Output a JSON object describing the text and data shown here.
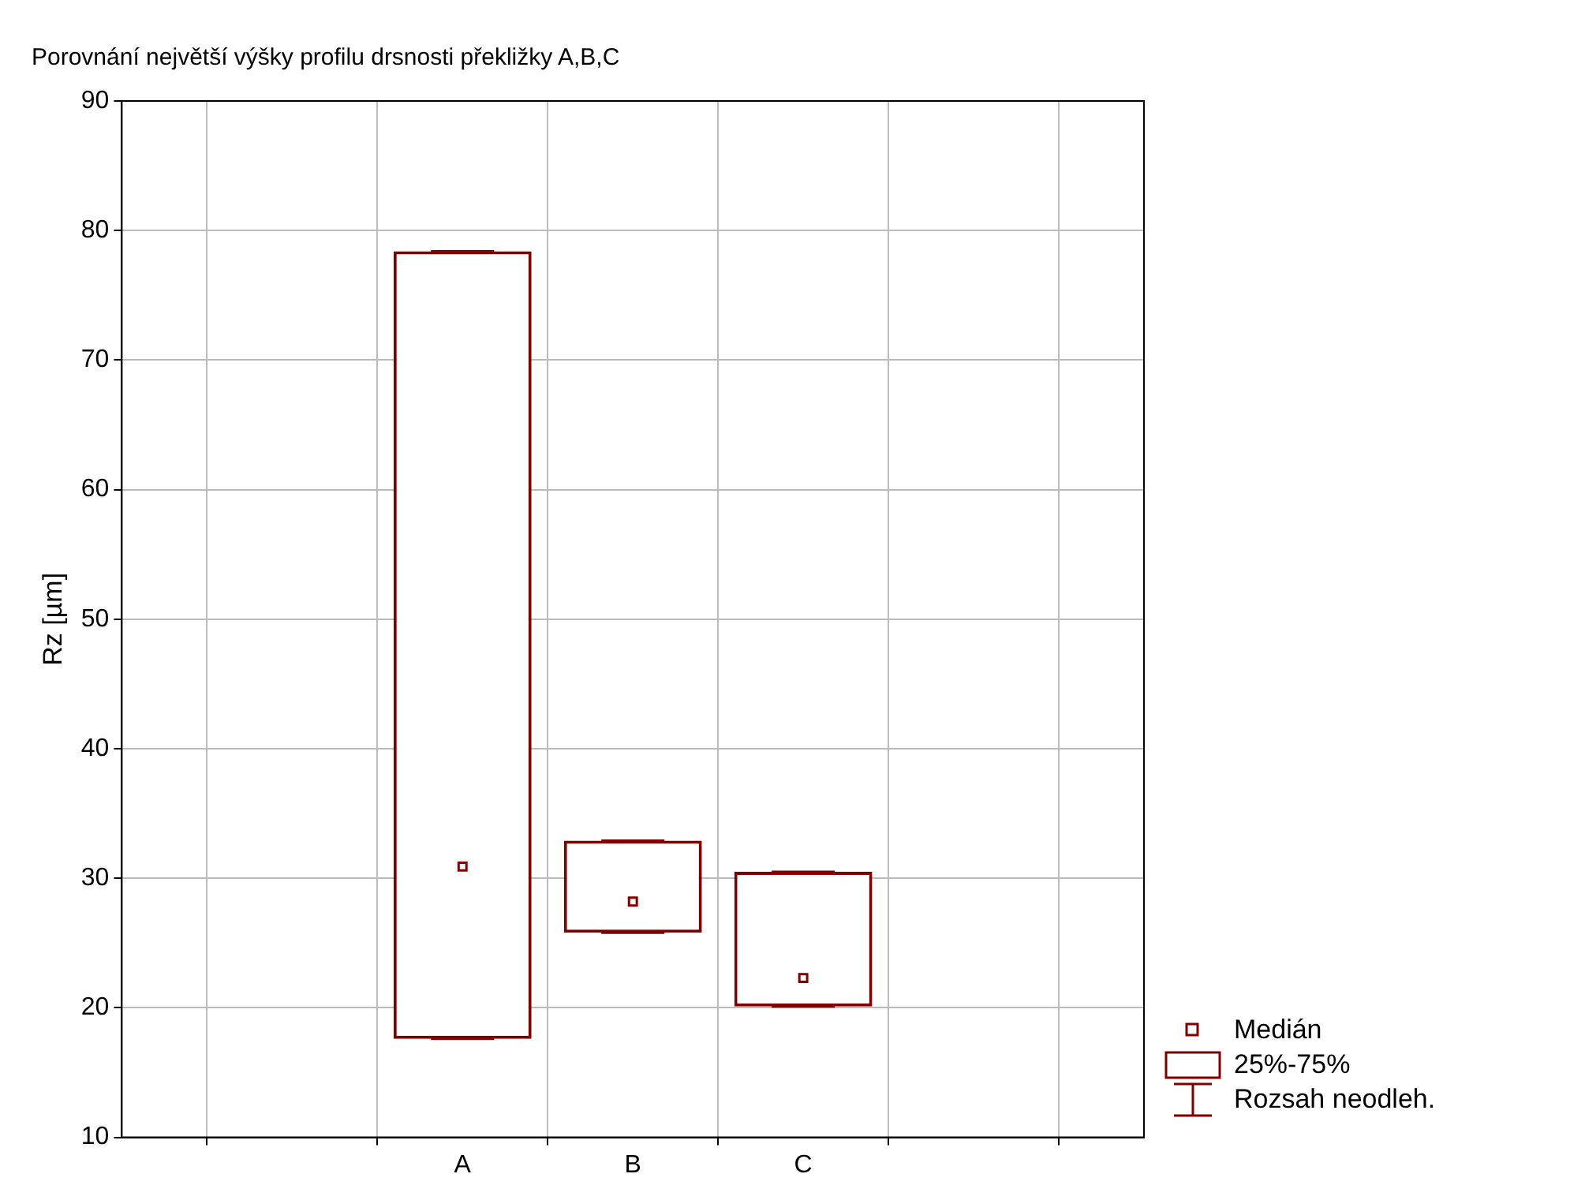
{
  "chart_data": {
    "type": "box",
    "title": "Porovnání největší výšky profilu drsnosti překližky A,B,C",
    "ylabel": "Rz [µm]",
    "categories": [
      null,
      null,
      "A",
      "B",
      "C",
      null,
      null
    ],
    "color": "#800000",
    "boxes": [
      null,
      null,
      {
        "low": 17.6,
        "q1": 17.6,
        "median": 30.9,
        "q3": 78.4,
        "high": 78.4
      },
      {
        "low": 25.8,
        "q1": 25.8,
        "median": 28.2,
        "q3": 32.9,
        "high": 32.9
      },
      {
        "low": 20.1,
        "q1": 20.1,
        "median": 22.3,
        "q3": 30.5,
        "high": 30.5
      },
      null,
      null
    ],
    "ylim": [
      10,
      90
    ],
    "yticks": [
      10,
      20,
      30,
      40,
      50,
      60,
      70,
      80,
      90
    ],
    "grid": true,
    "annotations": [
      "Medián",
      "25%-75%",
      "Rozsah neodleh."
    ]
  }
}
